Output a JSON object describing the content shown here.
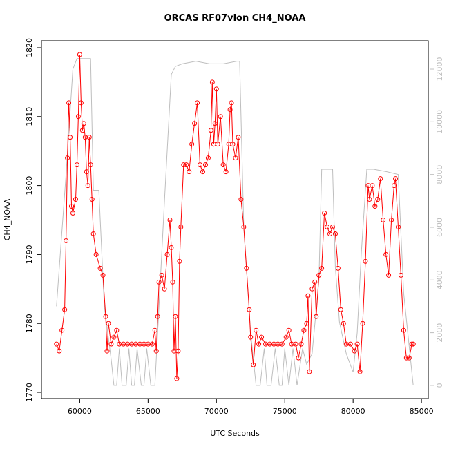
{
  "chart_data": {
    "type": "line",
    "title": "ORCAS RF07vlon CH4_NOAA",
    "x_label": "UTC Seconds",
    "y_label": "CH4_NOAA",
    "xlim": [
      57200,
      85500
    ],
    "xticks": [
      60000,
      65000,
      70000,
      75000,
      80000,
      85000
    ],
    "ylim": [
      1769.1,
      1821.0
    ],
    "yticks": [
      1770,
      1780,
      1790,
      1800,
      1810,
      1820
    ],
    "y2lim": [
      -500,
      13075
    ],
    "y2ticks": [
      0,
      2000,
      4000,
      6000,
      8000,
      10000,
      12000
    ],
    "series": [
      {
        "color": "#bebebe",
        "axis": "y2",
        "markers": false,
        "x": [
          58300,
          59000,
          59500,
          59800,
          60800,
          61000,
          61400,
          61800,
          62300,
          62500,
          62700,
          62900,
          63100,
          63400,
          63600,
          63800,
          64000,
          64200,
          64500,
          64700,
          64900,
          65200,
          65500,
          65800,
          66200,
          66700,
          67000,
          67500,
          68500,
          69500,
          70500,
          71500,
          71700,
          72000,
          72500,
          72900,
          73200,
          73500,
          73700,
          74000,
          74300,
          74600,
          74800,
          75000,
          75300,
          75600,
          75900,
          76300,
          76600,
          77000,
          77500,
          77700,
          78500,
          78700,
          79000,
          79500,
          80000,
          80300,
          80600,
          81000,
          81500,
          82500,
          83300,
          83700,
          84000,
          84400
        ],
        "values": [
          3000,
          8000,
          12000,
          12400,
          12400,
          7400,
          7400,
          3000,
          1000,
          0,
          0,
          1400,
          0,
          0,
          1400,
          0,
          0,
          1400,
          0,
          0,
          1400,
          0,
          0,
          3000,
          7000,
          11800,
          12100,
          12200,
          12300,
          12200,
          12200,
          12300,
          12300,
          6000,
          2000,
          0,
          0,
          1400,
          0,
          0,
          1400,
          0,
          0,
          1400,
          0,
          1400,
          0,
          1400,
          800,
          1200,
          4000,
          8200,
          8200,
          4500,
          2400,
          1200,
          500,
          2000,
          5000,
          8200,
          8200,
          8100,
          8000,
          3500,
          2000,
          0
        ]
      },
      {
        "color": "#ff0000",
        "axis": "y",
        "markers": true,
        "x": [
          58300,
          58500,
          58700,
          58900,
          59000,
          59100,
          59200,
          59300,
          59400,
          59500,
          59700,
          59800,
          59900,
          60000,
          60100,
          60200,
          60300,
          60400,
          60500,
          60600,
          60700,
          60800,
          60900,
          61000,
          61200,
          61500,
          61700,
          61900,
          62000,
          62100,
          62300,
          62500,
          62700,
          62900,
          63200,
          63500,
          63800,
          64100,
          64400,
          64700,
          65000,
          65300,
          65500,
          65600,
          65700,
          65800,
          66000,
          66200,
          66400,
          66600,
          66700,
          66800,
          66900,
          67000,
          67100,
          67200,
          67300,
          67400,
          67600,
          67800,
          68000,
          68200,
          68400,
          68600,
          68800,
          69000,
          69200,
          69400,
          69600,
          69700,
          69800,
          69900,
          70000,
          70100,
          70300,
          70500,
          70700,
          70900,
          71000,
          71100,
          71200,
          71400,
          71600,
          71800,
          72000,
          72200,
          72400,
          72500,
          72700,
          72900,
          73100,
          73300,
          73600,
          73900,
          74200,
          74500,
          74800,
          75100,
          75300,
          75500,
          75800,
          76000,
          76200,
          76400,
          76600,
          76700,
          76800,
          77000,
          77200,
          77300,
          77500,
          77700,
          77900,
          78100,
          78300,
          78500,
          78700,
          78900,
          79100,
          79300,
          79500,
          79800,
          80100,
          80300,
          80500,
          80700,
          80900,
          81100,
          81200,
          81400,
          81600,
          81800,
          82000,
          82200,
          82400,
          82600,
          82800,
          83000,
          83100,
          83300,
          83500,
          83700,
          83900,
          84100,
          84300,
          84400
        ],
        "values": [
          1777,
          1776,
          1779,
          1782,
          1792,
          1804,
          1812,
          1807,
          1797,
          1796,
          1798,
          1803,
          1810,
          1819,
          1812,
          1808,
          1809,
          1807,
          1802,
          1800,
          1807,
          1803,
          1798,
          1793,
          1790,
          1788,
          1787,
          1781,
          1776,
          1780,
          1777,
          1778,
          1779,
          1777,
          1777,
          1777,
          1777,
          1777,
          1777,
          1777,
          1777,
          1777,
          1779,
          1776,
          1781,
          1786,
          1787,
          1785,
          1790,
          1795,
          1791,
          1786,
          1776,
          1781,
          1772,
          1776,
          1789,
          1794,
          1803,
          1803,
          1802,
          1806,
          1809,
          1812,
          1803,
          1802,
          1803,
          1804,
          1808,
          1815,
          1806,
          1809,
          1814,
          1806,
          1810,
          1803,
          1802,
          1806,
          1811,
          1812,
          1806,
          1804,
          1807,
          1798,
          1794,
          1788,
          1782,
          1778,
          1774,
          1779,
          1777,
          1778,
          1777,
          1777,
          1777,
          1777,
          1777,
          1778,
          1779,
          1777,
          1777,
          1775,
          1777,
          1779,
          1780,
          1784,
          1773,
          1785,
          1786,
          1781,
          1787,
          1788,
          1796,
          1794,
          1793,
          1794,
          1793,
          1788,
          1782,
          1780,
          1777,
          1777,
          1776,
          1777,
          1773,
          1780,
          1789,
          1800,
          1798,
          1800,
          1797,
          1798,
          1801,
          1795,
          1790,
          1787,
          1795,
          1800,
          1801,
          1794,
          1787,
          1779,
          1775,
          1775,
          1777,
          1777
        ]
      }
    ]
  }
}
